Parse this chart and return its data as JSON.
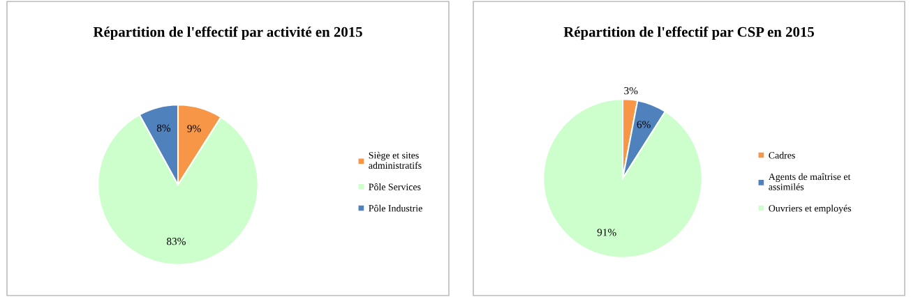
{
  "chart_data": [
    {
      "type": "pie",
      "title": "Répartition de l'effectif par activité en 2015",
      "categories": [
        "Siège et sites administratifs",
        "Pôle Services",
        "Pôle Industrie"
      ],
      "values": [
        9,
        83,
        8
      ],
      "value_labels": [
        "9%",
        "83%",
        "8%"
      ],
      "colors": [
        "#f79646",
        "#ccffcc",
        "#4f81bd"
      ],
      "legend": "right"
    },
    {
      "type": "pie",
      "title": "Répartition de l'effectif par CSP en 2015",
      "categories": [
        "Cadres",
        "Agents de maîtrise et assimilés",
        "Ouvriers et employés"
      ],
      "values": [
        3,
        6,
        91
      ],
      "value_labels": [
        "3%",
        "6%",
        "91%"
      ],
      "colors": [
        "#f79646",
        "#4f81bd",
        "#ccffcc"
      ],
      "legend": "right"
    }
  ]
}
